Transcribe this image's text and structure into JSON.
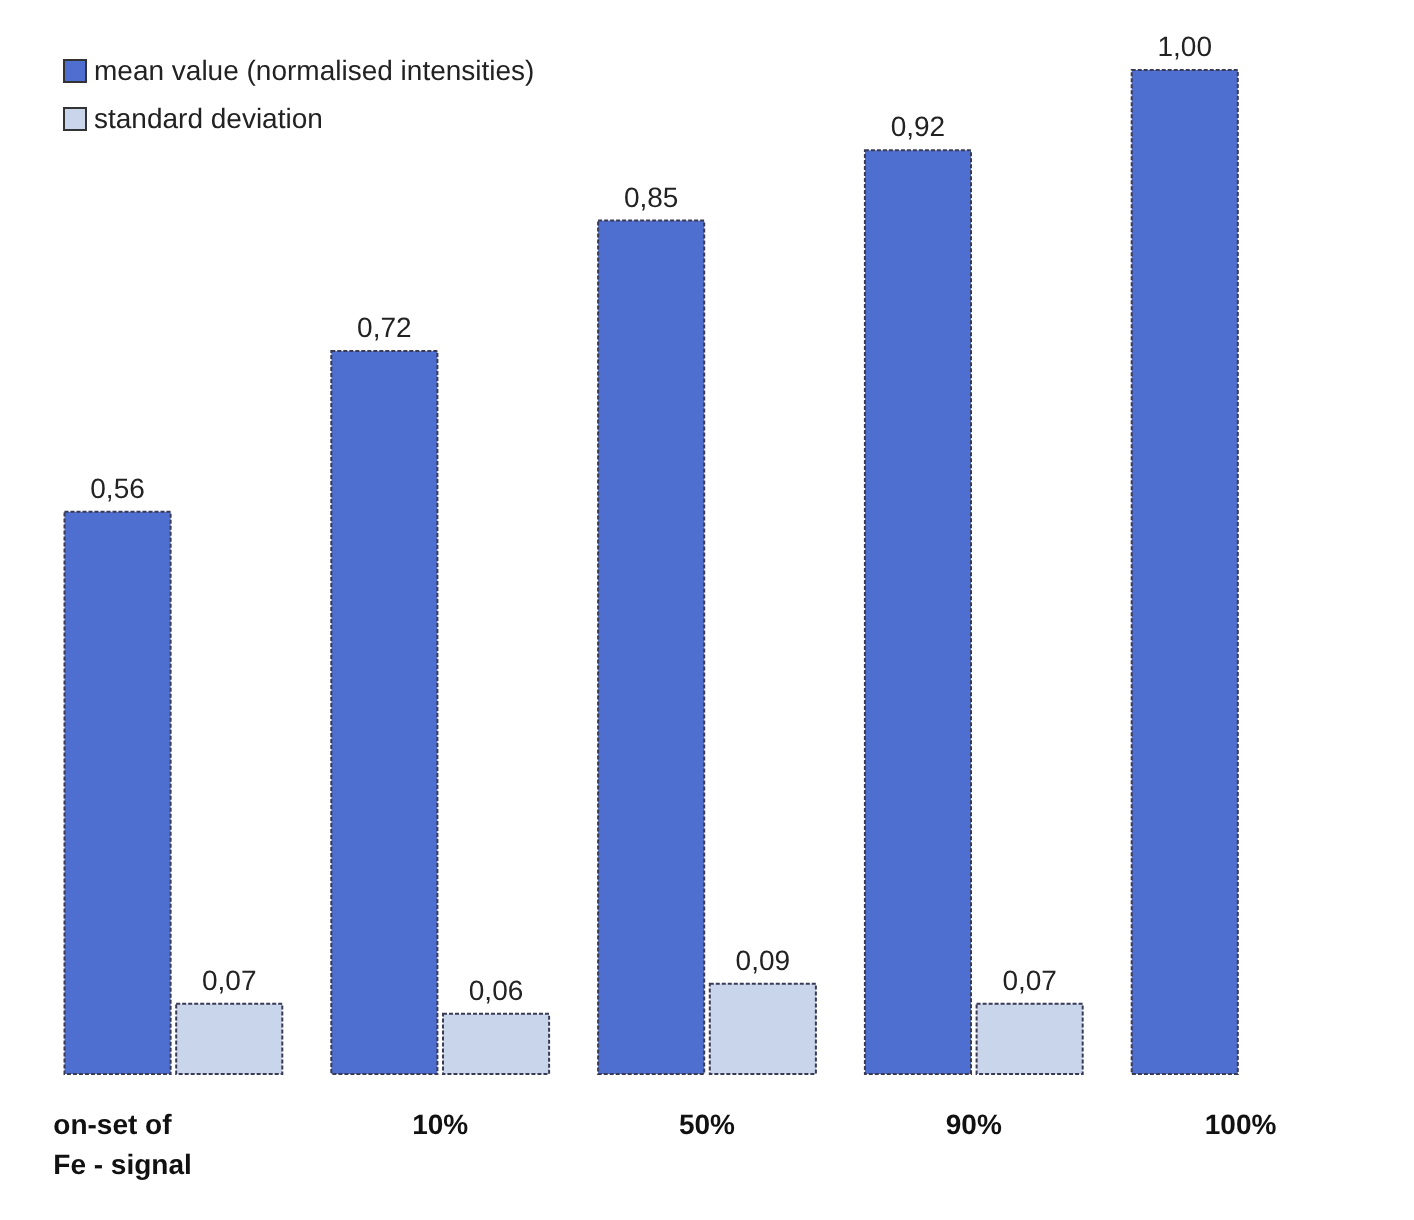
{
  "chart_data": {
    "type": "bar",
    "categories": [
      "on-set of\nFe - signal",
      "10%",
      "50%",
      "90%",
      "100%"
    ],
    "series": [
      {
        "name": "mean value (normalised intensities)",
        "color": "#4f6fd0",
        "values": [
          0.56,
          0.72,
          0.85,
          0.92,
          1.0
        ],
        "value_labels": [
          "0,56",
          "0,72",
          "0,85",
          "0,92",
          "1,00"
        ]
      },
      {
        "name": "standard deviation",
        "color": "#c9d5ea",
        "values": [
          0.07,
          0.06,
          0.09,
          0.07,
          null
        ],
        "value_labels": [
          "0,07",
          "0,06",
          "0,09",
          "0,07",
          null
        ]
      }
    ],
    "legend": "top left",
    "grid": false
  }
}
